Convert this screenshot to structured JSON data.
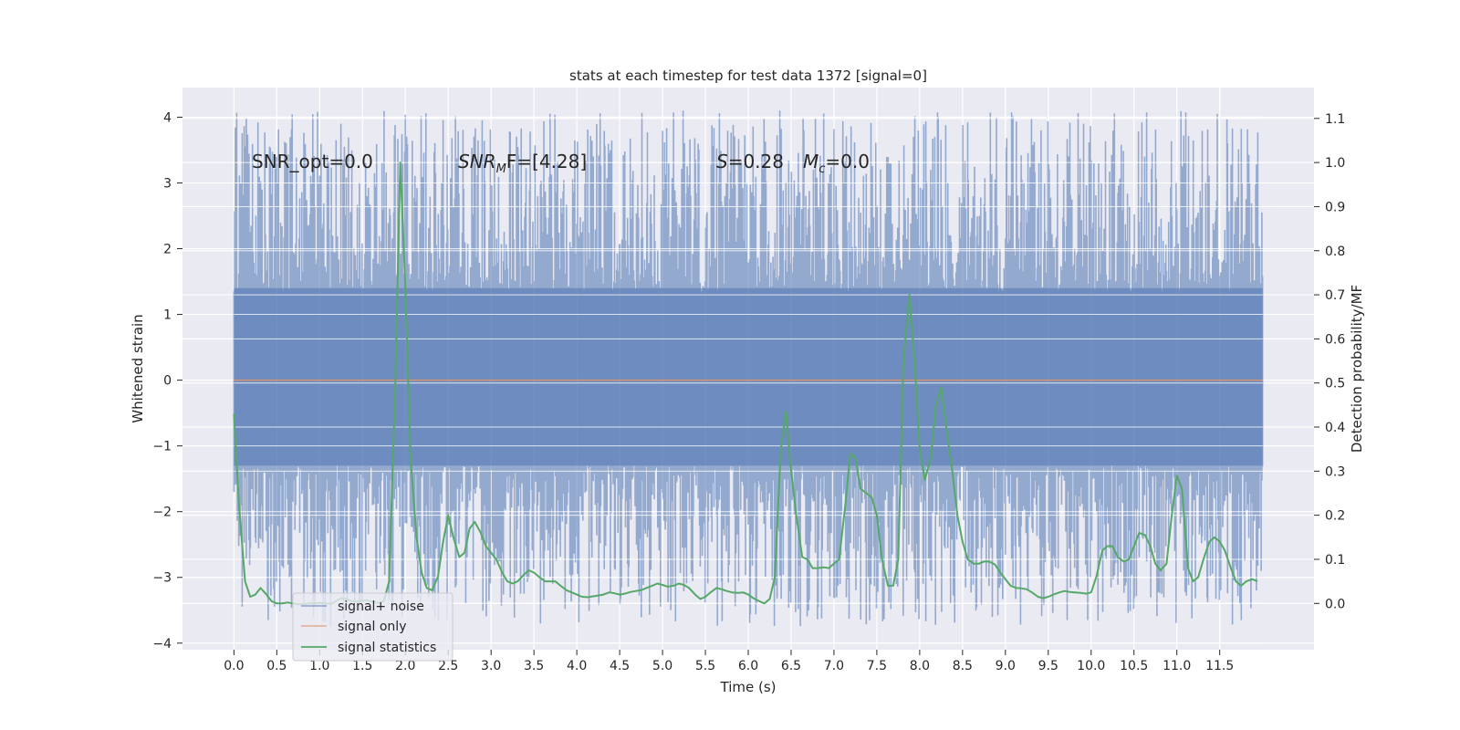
{
  "chart_data": {
    "type": "line",
    "title": "stats at each timestep for test data 1372 [signal=0]",
    "xlabel": "Time (s)",
    "ylabel": "Whitened strain",
    "y2label": "Detection probability/MF",
    "xlim": [
      -0.6,
      12.6
    ],
    "ylim": [
      -4.1,
      4.45
    ],
    "y2lim": [
      -0.105,
      1.17
    ],
    "xticks": [
      "0.0",
      "0.5",
      "1.0",
      "1.5",
      "2.0",
      "2.5",
      "3.0",
      "3.5",
      "4.0",
      "4.5",
      "5.0",
      "5.5",
      "6.0",
      "6.5",
      "7.0",
      "7.5",
      "8.0",
      "8.5",
      "9.0",
      "9.5",
      "10.0",
      "10.5",
      "11.0",
      "11.5"
    ],
    "yticks": [
      "4",
      "3",
      "2",
      "1",
      "0",
      "−1",
      "−2",
      "−3",
      "−4"
    ],
    "y2ticks": [
      "1.1",
      "1.0",
      "0.9",
      "0.8",
      "0.7",
      "0.6",
      "0.5",
      "0.4",
      "0.3",
      "0.2",
      "0.1",
      "0.0"
    ],
    "grid": true,
    "legend_position": "lower-left",
    "annotations": {
      "snr_opt": "SNR_opt=0.0",
      "snr_mf_sym": "SNR",
      "snr_mf_sub": "M",
      "snr_mf_rest": "F=[4.28]",
      "s_sym": "S",
      "s_rest": "=0.28",
      "mc_sym": "M",
      "mc_sub": "c",
      "mc_rest": "=0.0"
    },
    "series": [
      {
        "name": "signal+ noise",
        "color": "#4c72b0",
        "axis": "left",
        "x_range": [
          0.0,
          12.0
        ],
        "band": [
          -1.3,
          1.4
        ],
        "envelope_max": 4.1,
        "envelope_min": -3.75
      },
      {
        "name": "signal only",
        "color": "#dd8452",
        "axis": "left",
        "x": [
          0.0,
          12.0
        ],
        "y": [
          0.0,
          0.0
        ]
      },
      {
        "name": "signal statistics",
        "color": "#55a868",
        "axis": "right",
        "x": [
          0.0,
          0.06,
          0.13,
          0.19,
          0.25,
          0.31,
          0.38,
          0.44,
          0.5,
          0.56,
          0.63,
          0.69,
          0.75,
          0.81,
          0.88,
          0.94,
          1.0,
          1.06,
          1.13,
          1.19,
          1.25,
          1.31,
          1.38,
          1.44,
          1.5,
          1.56,
          1.63,
          1.69,
          1.75,
          1.81,
          1.88,
          1.94,
          2.0,
          2.06,
          2.13,
          2.19,
          2.25,
          2.31,
          2.38,
          2.44,
          2.5,
          2.56,
          2.63,
          2.69,
          2.75,
          2.81,
          2.88,
          2.94,
          3.0,
          3.06,
          3.13,
          3.19,
          3.25,
          3.31,
          3.38,
          3.44,
          3.5,
          3.56,
          3.63,
          3.69,
          3.75,
          3.81,
          3.88,
          3.94,
          4.0,
          4.06,
          4.13,
          4.19,
          4.25,
          4.31,
          4.38,
          4.44,
          4.5,
          4.56,
          4.63,
          4.69,
          4.75,
          4.81,
          4.88,
          4.94,
          5.0,
          5.06,
          5.13,
          5.19,
          5.25,
          5.31,
          5.38,
          5.44,
          5.5,
          5.56,
          5.63,
          5.69,
          5.75,
          5.81,
          5.88,
          5.94,
          6.0,
          6.06,
          6.13,
          6.19,
          6.25,
          6.31,
          6.38,
          6.44,
          6.5,
          6.56,
          6.63,
          6.69,
          6.75,
          6.81,
          6.88,
          6.94,
          7.0,
          7.06,
          7.13,
          7.19,
          7.25,
          7.31,
          7.38,
          7.44,
          7.5,
          7.56,
          7.63,
          7.69,
          7.75,
          7.81,
          7.88,
          7.94,
          8.0,
          8.06,
          8.13,
          8.19,
          8.25,
          8.31,
          8.38,
          8.44,
          8.5,
          8.56,
          8.63,
          8.69,
          8.75,
          8.81,
          8.88,
          8.94,
          9.0,
          9.06,
          9.13,
          9.19,
          9.25,
          9.31,
          9.38,
          9.44,
          9.5,
          9.56,
          9.63,
          9.69,
          9.75,
          9.81,
          9.88,
          9.94,
          10.0,
          10.06,
          10.13,
          10.19,
          10.25,
          10.31,
          10.38,
          10.44,
          10.5,
          10.56,
          10.63,
          10.69,
          10.75,
          10.81,
          10.88,
          10.94,
          11.0,
          11.06,
          11.13,
          11.19,
          11.25,
          11.31,
          11.38,
          11.44,
          11.5,
          11.56,
          11.63,
          11.69,
          11.75,
          11.81,
          11.88,
          11.94
        ],
        "y": [
          0.43,
          0.22,
          0.05,
          0.015,
          0.02,
          0.035,
          0.02,
          0.005,
          0.0,
          0.0,
          0.002,
          0.0,
          -0.002,
          -0.002,
          0.0,
          0.0,
          0.001,
          0.0,
          -0.001,
          0.005,
          0.012,
          0.01,
          0.005,
          0.004,
          0.006,
          0.007,
          0.003,
          0.001,
          0.006,
          0.05,
          0.48,
          1.0,
          0.72,
          0.33,
          0.15,
          0.07,
          0.035,
          0.03,
          0.06,
          0.14,
          0.2,
          0.15,
          0.105,
          0.115,
          0.17,
          0.185,
          0.16,
          0.13,
          0.115,
          0.1,
          0.07,
          0.05,
          0.045,
          0.05,
          0.065,
          0.075,
          0.07,
          0.06,
          0.05,
          0.05,
          0.05,
          0.04,
          0.03,
          0.025,
          0.02,
          0.015,
          0.014,
          0.016,
          0.018,
          0.02,
          0.025,
          0.023,
          0.02,
          0.022,
          0.026,
          0.028,
          0.03,
          0.035,
          0.04,
          0.045,
          0.042,
          0.038,
          0.04,
          0.045,
          0.042,
          0.035,
          0.02,
          0.01,
          0.015,
          0.025,
          0.035,
          0.032,
          0.028,
          0.025,
          0.024,
          0.025,
          0.02,
          0.012,
          0.005,
          0.0,
          0.01,
          0.06,
          0.35,
          0.435,
          0.3,
          0.2,
          0.105,
          0.1,
          0.08,
          0.08,
          0.082,
          0.08,
          0.09,
          0.1,
          0.22,
          0.34,
          0.33,
          0.26,
          0.25,
          0.24,
          0.2,
          0.1,
          0.04,
          0.04,
          0.1,
          0.55,
          0.7,
          0.55,
          0.35,
          0.28,
          0.33,
          0.45,
          0.49,
          0.4,
          0.3,
          0.2,
          0.14,
          0.1,
          0.09,
          0.09,
          0.095,
          0.095,
          0.088,
          0.07,
          0.055,
          0.04,
          0.035,
          0.034,
          0.032,
          0.025,
          0.015,
          0.012,
          0.015,
          0.02,
          0.025,
          0.028,
          0.026,
          0.025,
          0.024,
          0.022,
          0.025,
          0.06,
          0.12,
          0.13,
          0.13,
          0.105,
          0.095,
          0.1,
          0.13,
          0.16,
          0.155,
          0.13,
          0.09,
          0.075,
          0.09,
          0.2,
          0.29,
          0.26,
          0.08,
          0.05,
          0.06,
          0.1,
          0.14,
          0.15,
          0.14,
          0.12,
          0.08,
          0.05,
          0.04,
          0.05,
          0.055,
          0.05
        ]
      }
    ]
  }
}
